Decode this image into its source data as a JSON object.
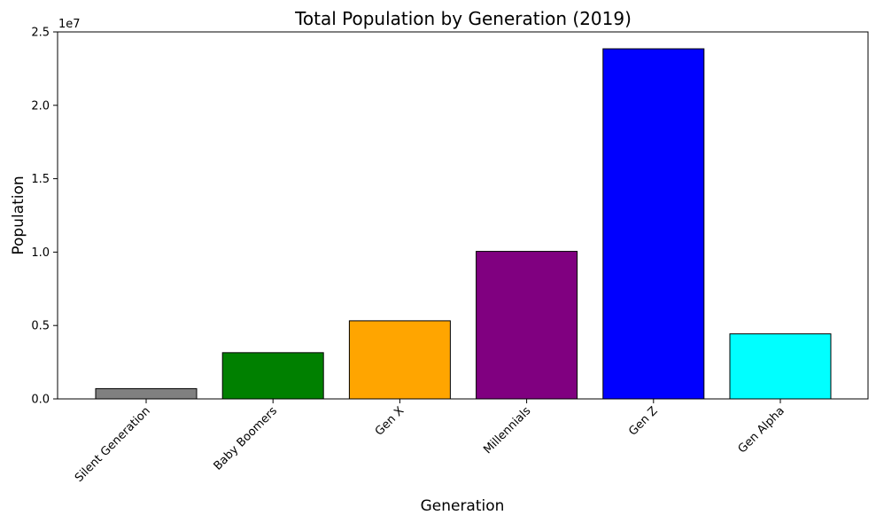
{
  "chart_data": {
    "type": "bar",
    "title": "Total Population by Generation (2019)",
    "xlabel": "Generation",
    "ylabel": "Population",
    "y_offset_label": "1e7",
    "categories": [
      "Silent Generation",
      "Baby Boomers",
      "Gen X",
      "Millennials",
      "Gen Z",
      "Gen Alpha"
    ],
    "values": [
      700000,
      3150000,
      5320000,
      10050000,
      23850000,
      4430000
    ],
    "colors": [
      "#808080",
      "#008000",
      "#ffa500",
      "#800080",
      "#0000ff",
      "#00ffff"
    ],
    "edge_color": "#000000",
    "ylim": [
      0,
      25000000
    ],
    "y_ticks": [
      0,
      5000000,
      10000000,
      15000000,
      20000000,
      25000000
    ],
    "y_tick_labels": [
      "0.0",
      "0.5",
      "1.0",
      "1.5",
      "2.0",
      "2.5"
    ],
    "grid": false,
    "legend": false
  }
}
